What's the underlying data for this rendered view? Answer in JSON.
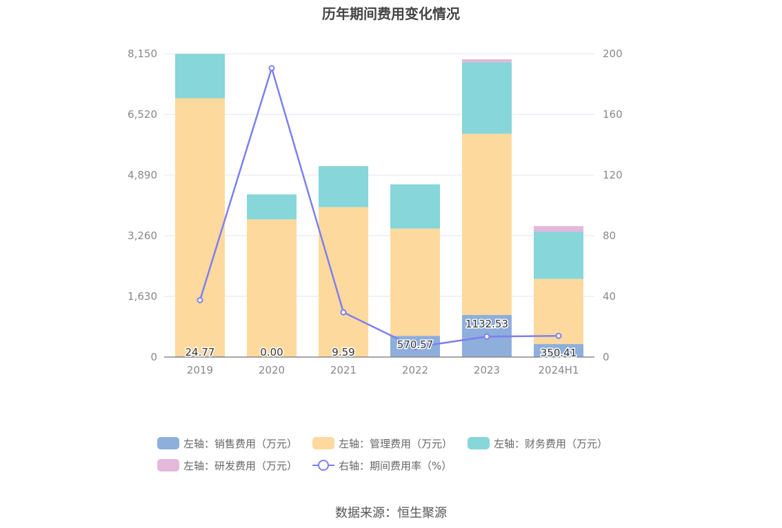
{
  "title": "历年期间费用变化情况",
  "source": "数据来源：恒生聚源",
  "colors": {
    "sales": "#8eaedb",
    "admin": "#fed99e",
    "finance": "#87d6d9",
    "rnd": "#e5b8db",
    "rate": "#7b7ff0"
  },
  "legend": {
    "sales": "左轴：销售费用（万元）",
    "admin": "左轴：管理费用（万元）",
    "finance": "左轴：财务费用（万元）",
    "rnd": "左轴：研发费用（万元）",
    "rate": "右轴：期间费用率（%）"
  },
  "chart_data": {
    "type": "bar",
    "stacked": true,
    "categories": [
      "2019",
      "2020",
      "2021",
      "2022",
      "2023",
      "2024H1"
    ],
    "left_axis": {
      "min": 0,
      "max": 8150,
      "ticks": [
        0,
        1630,
        3260,
        4890,
        6520,
        8150
      ],
      "tick_labels": [
        "0",
        "1,630",
        "3,260",
        "4,890",
        "6,520",
        "8,150"
      ]
    },
    "right_axis": {
      "min": 0,
      "max": 200,
      "ticks": [
        0,
        40,
        80,
        120,
        160,
        200
      ],
      "tick_labels": [
        "0",
        "40",
        "80",
        "120",
        "160",
        "200"
      ]
    },
    "series": [
      {
        "name": "左轴：销售费用（万元）",
        "key": "sales",
        "axis": "left",
        "type": "bar",
        "values": [
          24.77,
          0.0,
          9.59,
          570.57,
          1132.53,
          350.41
        ]
      },
      {
        "name": "左轴：管理费用（万元）",
        "key": "admin",
        "axis": "left",
        "type": "bar",
        "values": [
          6930,
          3700,
          4020,
          2880,
          4870,
          1750
        ]
      },
      {
        "name": "左轴：财务费用（万元）",
        "key": "finance",
        "axis": "left",
        "type": "bar",
        "values": [
          1190,
          670,
          1100,
          1190,
          1920,
          1270
        ]
      },
      {
        "name": "左轴：研发费用（万元）",
        "key": "rnd",
        "axis": "left",
        "type": "bar",
        "values": [
          0,
          0,
          0,
          0,
          80,
          150
        ]
      },
      {
        "name": "右轴：期间费用率（%）",
        "key": "rate",
        "axis": "right",
        "type": "line",
        "values": [
          37.5,
          190.5,
          29.5,
          6.5,
          13.5,
          14.0
        ]
      }
    ],
    "data_labels": [
      "24.77",
      "0.00",
      "9.59",
      "570.57",
      "1132.53",
      "350.41"
    ],
    "grid": true,
    "legend_position": "bottom"
  }
}
